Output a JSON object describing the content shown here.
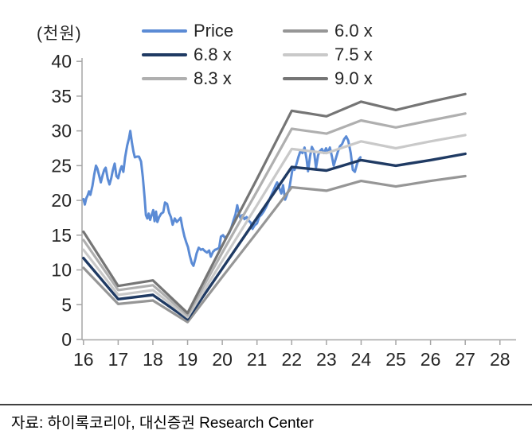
{
  "chart_data": {
    "type": "line",
    "unit_label": "(천원)",
    "x_tick_labels": [
      "16",
      "17",
      "18",
      "19",
      "20",
      "21",
      "22",
      "23",
      "24",
      "25",
      "26",
      "27",
      "28"
    ],
    "x_tick_values": [
      16,
      17,
      18,
      19,
      20,
      21,
      22,
      23,
      24,
      25,
      26,
      27,
      28
    ],
    "y_tick_labels": [
      "0",
      "5",
      "10",
      "15",
      "20",
      "25",
      "30",
      "35",
      "40"
    ],
    "y_tick_values": [
      0,
      5,
      10,
      15,
      20,
      25,
      30,
      35,
      40
    ],
    "xlim": [
      16,
      28.5
    ],
    "ylim": [
      0,
      40
    ],
    "grid": "off",
    "axis_color": "#A6A6A6",
    "tick_label_color": "#262626",
    "price_series": {
      "name": "Price",
      "color": "#5B8BD5",
      "points": [
        [
          16.0,
          20.2
        ],
        [
          16.04,
          19.4
        ],
        [
          16.08,
          20.3
        ],
        [
          16.12,
          20.7
        ],
        [
          16.16,
          21.3
        ],
        [
          16.2,
          20.8
        ],
        [
          16.26,
          22.1
        ],
        [
          16.31,
          23.7
        ],
        [
          16.36,
          25.0
        ],
        [
          16.4,
          24.6
        ],
        [
          16.44,
          23.8
        ],
        [
          16.5,
          22.6
        ],
        [
          16.55,
          23.6
        ],
        [
          16.6,
          24.4
        ],
        [
          16.64,
          24.7
        ],
        [
          16.7,
          23.1
        ],
        [
          16.75,
          22.3
        ],
        [
          16.8,
          23.2
        ],
        [
          16.85,
          24.4
        ],
        [
          16.9,
          25.3
        ],
        [
          16.95,
          23.5
        ],
        [
          17.0,
          23.2
        ],
        [
          17.06,
          24.4
        ],
        [
          17.1,
          24.9
        ],
        [
          17.15,
          24.1
        ],
        [
          17.2,
          26.2
        ],
        [
          17.26,
          27.9
        ],
        [
          17.31,
          28.9
        ],
        [
          17.35,
          30.0
        ],
        [
          17.4,
          28.2
        ],
        [
          17.44,
          27.0
        ],
        [
          17.48,
          26.2
        ],
        [
          17.54,
          26.3
        ],
        [
          17.6,
          26.3
        ],
        [
          17.66,
          25.6
        ],
        [
          17.71,
          23.4
        ],
        [
          17.76,
          20.5
        ],
        [
          17.8,
          17.9
        ],
        [
          17.84,
          17.4
        ],
        [
          17.88,
          18.1
        ],
        [
          17.92,
          17.2
        ],
        [
          17.97,
          18.0
        ],
        [
          18.01,
          18.6
        ],
        [
          18.05,
          17.0
        ],
        [
          18.09,
          18.4
        ],
        [
          18.13,
          16.9
        ],
        [
          18.18,
          17.6
        ],
        [
          18.24,
          18.1
        ],
        [
          18.3,
          18.3
        ],
        [
          18.35,
          19.7
        ],
        [
          18.41,
          19.5
        ],
        [
          18.47,
          18.2
        ],
        [
          18.52,
          17.6
        ],
        [
          18.57,
          16.5
        ],
        [
          18.63,
          17.4
        ],
        [
          18.69,
          16.9
        ],
        [
          18.75,
          17.2
        ],
        [
          18.8,
          17.5
        ],
        [
          18.85,
          16.1
        ],
        [
          18.91,
          14.8
        ],
        [
          18.96,
          14.0
        ],
        [
          19.01,
          13.3
        ],
        [
          19.06,
          12.1
        ],
        [
          19.12,
          11.0
        ],
        [
          19.17,
          10.6
        ],
        [
          19.22,
          11.5
        ],
        [
          19.26,
          12.4
        ],
        [
          19.32,
          13.2
        ],
        [
          19.38,
          12.9
        ],
        [
          19.44,
          13.0
        ],
        [
          19.5,
          12.7
        ],
        [
          19.56,
          12.5
        ],
        [
          19.62,
          12.8
        ],
        [
          19.67,
          11.9
        ],
        [
          19.73,
          12.6
        ],
        [
          19.79,
          12.9
        ],
        [
          19.85,
          13.0
        ],
        [
          19.91,
          13.2
        ],
        [
          19.96,
          14.8
        ],
        [
          20.02,
          15.0
        ],
        [
          20.08,
          14.6
        ],
        [
          20.14,
          14.9
        ],
        [
          20.2,
          15.3
        ],
        [
          20.26,
          16.1
        ],
        [
          20.32,
          17.1
        ],
        [
          20.38,
          18.0
        ],
        [
          20.43,
          19.3
        ],
        [
          20.48,
          18.1
        ],
        [
          20.53,
          17.4
        ],
        [
          20.58,
          17.9
        ],
        [
          20.64,
          17.3
        ],
        [
          20.7,
          17.6
        ],
        [
          20.76,
          17.1
        ],
        [
          20.82,
          16.8
        ],
        [
          20.87,
          15.9
        ],
        [
          20.93,
          16.4
        ],
        [
          21.0,
          16.7
        ],
        [
          21.06,
          17.6
        ],
        [
          21.12,
          17.9
        ],
        [
          21.19,
          18.4
        ],
        [
          21.26,
          19.0
        ],
        [
          21.33,
          19.8
        ],
        [
          21.4,
          20.6
        ],
        [
          21.47,
          21.4
        ],
        [
          21.53,
          22.1
        ],
        [
          21.58,
          22.6
        ],
        [
          21.64,
          21.8
        ],
        [
          21.7,
          21.0
        ],
        [
          21.75,
          22.2
        ],
        [
          21.81,
          20.1
        ],
        [
          21.87,
          20.9
        ],
        [
          21.93,
          21.7
        ],
        [
          21.98,
          23.2
        ],
        [
          22.03,
          24.7
        ],
        [
          22.08,
          24.4
        ],
        [
          22.13,
          25.1
        ],
        [
          22.19,
          26.2
        ],
        [
          22.25,
          27.1
        ],
        [
          22.31,
          26.8
        ],
        [
          22.37,
          27.6
        ],
        [
          22.43,
          25.9
        ],
        [
          22.47,
          24.2
        ],
        [
          22.53,
          26.4
        ],
        [
          22.58,
          27.7
        ],
        [
          22.64,
          27.1
        ],
        [
          22.7,
          24.7
        ],
        [
          22.76,
          26.5
        ],
        [
          22.81,
          27.1
        ],
        [
          22.87,
          27.4
        ],
        [
          22.93,
          26.8
        ],
        [
          22.99,
          27.5
        ],
        [
          23.05,
          26.9
        ],
        [
          23.1,
          27.6
        ],
        [
          23.16,
          26.3
        ],
        [
          23.21,
          25.0
        ],
        [
          23.27,
          26.0
        ],
        [
          23.33,
          27.0
        ],
        [
          23.39,
          27.8
        ],
        [
          23.45,
          28.1
        ],
        [
          23.51,
          28.8
        ],
        [
          23.57,
          29.2
        ],
        [
          23.63,
          28.6
        ],
        [
          23.7,
          26.8
        ],
        [
          23.76,
          24.4
        ],
        [
          23.82,
          24.1
        ],
        [
          23.88,
          25.2
        ],
        [
          23.93,
          25.9
        ],
        [
          23.98,
          26.2
        ]
      ]
    },
    "band_categories": [
      16,
      17,
      18,
      19,
      20,
      21,
      22,
      23,
      24,
      25,
      26,
      27
    ],
    "band_series": [
      {
        "name": "6.0 x",
        "color": "#969696",
        "width": 3.2,
        "values": [
          10.3,
          5.1,
          5.6,
          2.5,
          9.0,
          15.4,
          21.9,
          21.4,
          22.8,
          22.0,
          22.8,
          23.5
        ]
      },
      {
        "name": "6.8 x",
        "color": "#1F3A63",
        "width": 3.4,
        "values": [
          11.7,
          5.8,
          6.4,
          2.9,
          10.2,
          17.5,
          24.8,
          24.3,
          25.8,
          25.0,
          25.8,
          26.7
        ]
      },
      {
        "name": "7.5 x",
        "color": "#C9C9C9",
        "width": 3.2,
        "values": [
          12.9,
          6.4,
          7.1,
          3.2,
          11.3,
          19.3,
          27.4,
          26.8,
          28.5,
          27.5,
          28.5,
          29.4
        ]
      },
      {
        "name": "8.3 x",
        "color": "#AFAFAF",
        "width": 3.2,
        "values": [
          14.3,
          7.1,
          7.8,
          3.5,
          12.5,
          21.3,
          30.3,
          29.6,
          31.5,
          30.5,
          31.5,
          32.5
        ]
      },
      {
        "name": "9.0 x",
        "color": "#757575",
        "width": 3.2,
        "values": [
          15.5,
          7.7,
          8.5,
          3.8,
          13.5,
          23.1,
          32.9,
          32.1,
          34.2,
          33.0,
          34.2,
          35.3
        ]
      }
    ],
    "legend": {
      "position": "top",
      "columns": [
        [
          {
            "label": "Price",
            "color": "#5B8BD5"
          },
          {
            "label": "6.8 x",
            "color": "#1F3A63"
          },
          {
            "label": "8.3 x",
            "color": "#AFAFAF"
          }
        ],
        [
          {
            "label": "6.0 x",
            "color": "#969696"
          },
          {
            "label": "7.5 x",
            "color": "#C9C9C9"
          },
          {
            "label": "9.0 x",
            "color": "#757575"
          }
        ]
      ]
    }
  },
  "footer": {
    "source": "자료: 하이록코리아, 대신증권 Research Center"
  }
}
